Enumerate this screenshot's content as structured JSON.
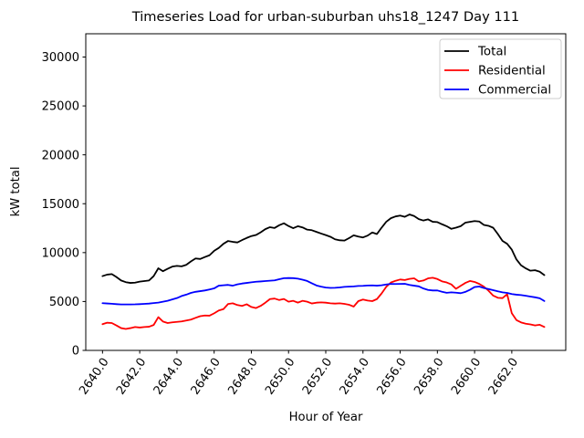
{
  "title": "Timeseries Load for urban-suburban uhs18_1247  Day 111",
  "chart_data": {
    "type": "line",
    "title": "Timeseries Load for urban-suburban uhs18_1247  Day 111",
    "xlabel": "Hour of Year",
    "ylabel": "kW total",
    "grid": false,
    "legend_position": "upper right",
    "xlim": [
      2639.1,
      2664.9
    ],
    "ylim": [
      0,
      32380
    ],
    "x_tick_labels": [
      "2640.0",
      "2642.0",
      "2644.0",
      "2646.0",
      "2648.0",
      "2650.0",
      "2652.0",
      "2654.0",
      "2656.0",
      "2658.0",
      "2660.0",
      "2662.0"
    ],
    "y_tick_labels": [
      "0",
      "5000",
      "10000",
      "15000",
      "20000",
      "25000",
      "30000"
    ],
    "x": [
      2640.0,
      2640.25,
      2640.5,
      2640.75,
      2641.0,
      2641.25,
      2641.5,
      2641.75,
      2642.0,
      2642.25,
      2642.5,
      2642.75,
      2643.0,
      2643.25,
      2643.5,
      2643.75,
      2644.0,
      2644.25,
      2644.5,
      2644.75,
      2645.0,
      2645.25,
      2645.5,
      2645.75,
      2646.0,
      2646.25,
      2646.5,
      2646.75,
      2647.0,
      2647.25,
      2647.5,
      2647.75,
      2648.0,
      2648.25,
      2648.5,
      2648.75,
      2649.0,
      2649.25,
      2649.5,
      2649.75,
      2650.0,
      2650.25,
      2650.5,
      2650.75,
      2651.0,
      2651.25,
      2651.5,
      2651.75,
      2652.0,
      2652.25,
      2652.5,
      2652.75,
      2653.0,
      2653.25,
      2653.5,
      2653.75,
      2654.0,
      2654.25,
      2654.5,
      2654.75,
      2655.0,
      2655.25,
      2655.5,
      2655.75,
      2656.0,
      2656.25,
      2656.5,
      2656.75,
      2657.0,
      2657.25,
      2657.5,
      2657.75,
      2658.0,
      2658.25,
      2658.5,
      2658.75,
      2659.0,
      2659.25,
      2659.5,
      2659.75,
      2660.0,
      2660.25,
      2660.5,
      2660.75,
      2661.0,
      2661.25,
      2661.5,
      2661.75,
      2662.0,
      2662.25,
      2662.5,
      2662.75,
      2663.0,
      2663.25,
      2663.5,
      2663.75
    ],
    "series": [
      {
        "name": "Total",
        "color": "#000000",
        "values": [
          7600,
          7750,
          7800,
          7500,
          7150,
          6980,
          6900,
          6930,
          7030,
          7090,
          7150,
          7600,
          8400,
          8100,
          8350,
          8570,
          8640,
          8600,
          8750,
          9100,
          9400,
          9350,
          9550,
          9730,
          10180,
          10480,
          10900,
          11190,
          11100,
          11040,
          11280,
          11500,
          11690,
          11800,
          12070,
          12400,
          12600,
          12520,
          12800,
          13000,
          12715,
          12500,
          12700,
          12580,
          12350,
          12290,
          12120,
          11950,
          11790,
          11620,
          11360,
          11260,
          11230,
          11480,
          11770,
          11640,
          11550,
          11740,
          12060,
          11900,
          12550,
          13150,
          13520,
          13700,
          13790,
          13660,
          13900,
          13740,
          13430,
          13280,
          13400,
          13150,
          13120,
          12900,
          12700,
          12430,
          12550,
          12700,
          13060,
          13150,
          13230,
          13180,
          12830,
          12740,
          12540,
          11900,
          11200,
          10900,
          10300,
          9300,
          8700,
          8390,
          8150,
          8200,
          8050,
          7700
        ]
      },
      {
        "name": "Residential",
        "color": "#ff0000",
        "values": [
          2680,
          2830,
          2800,
          2550,
          2280,
          2190,
          2280,
          2390,
          2340,
          2390,
          2420,
          2600,
          3400,
          2950,
          2800,
          2870,
          2920,
          2960,
          3060,
          3150,
          3330,
          3500,
          3570,
          3550,
          3790,
          4080,
          4220,
          4750,
          4820,
          4640,
          4550,
          4720,
          4440,
          4330,
          4550,
          4880,
          5250,
          5300,
          5150,
          5260,
          4980,
          5070,
          4890,
          5070,
          4980,
          4800,
          4880,
          4910,
          4880,
          4820,
          4790,
          4820,
          4760,
          4670,
          4480,
          5040,
          5200,
          5100,
          5040,
          5250,
          5820,
          6500,
          6940,
          7120,
          7250,
          7200,
          7310,
          7370,
          7060,
          7150,
          7370,
          7430,
          7300,
          7060,
          6950,
          6750,
          6300,
          6600,
          6900,
          7100,
          7000,
          6800,
          6520,
          6100,
          5600,
          5380,
          5350,
          5750,
          3800,
          3100,
          2860,
          2730,
          2660,
          2550,
          2620,
          2400
        ]
      },
      {
        "name": "Commercial",
        "color": "#0000ff",
        "values": [
          4830,
          4800,
          4770,
          4730,
          4700,
          4700,
          4700,
          4710,
          4730,
          4760,
          4790,
          4840,
          4890,
          4980,
          5070,
          5210,
          5350,
          5560,
          5700,
          5880,
          5990,
          6060,
          6130,
          6230,
          6340,
          6620,
          6660,
          6700,
          6620,
          6750,
          6840,
          6900,
          6960,
          7020,
          7050,
          7090,
          7130,
          7160,
          7280,
          7380,
          7400,
          7390,
          7340,
          7230,
          7100,
          6870,
          6640,
          6520,
          6430,
          6390,
          6400,
          6440,
          6500,
          6520,
          6540,
          6590,
          6600,
          6640,
          6650,
          6620,
          6660,
          6740,
          6800,
          6790,
          6800,
          6810,
          6700,
          6620,
          6550,
          6330,
          6180,
          6130,
          6130,
          6000,
          5890,
          5940,
          5900,
          5850,
          5980,
          6200,
          6480,
          6530,
          6380,
          6280,
          6160,
          6040,
          5940,
          5880,
          5760,
          5700,
          5660,
          5590,
          5510,
          5430,
          5330,
          5050
        ]
      }
    ]
  },
  "legend": {
    "items": [
      {
        "label": "Total",
        "color": "#000000"
      },
      {
        "label": "Residential",
        "color": "#ff0000"
      },
      {
        "label": "Commercial",
        "color": "#0000ff"
      }
    ]
  }
}
